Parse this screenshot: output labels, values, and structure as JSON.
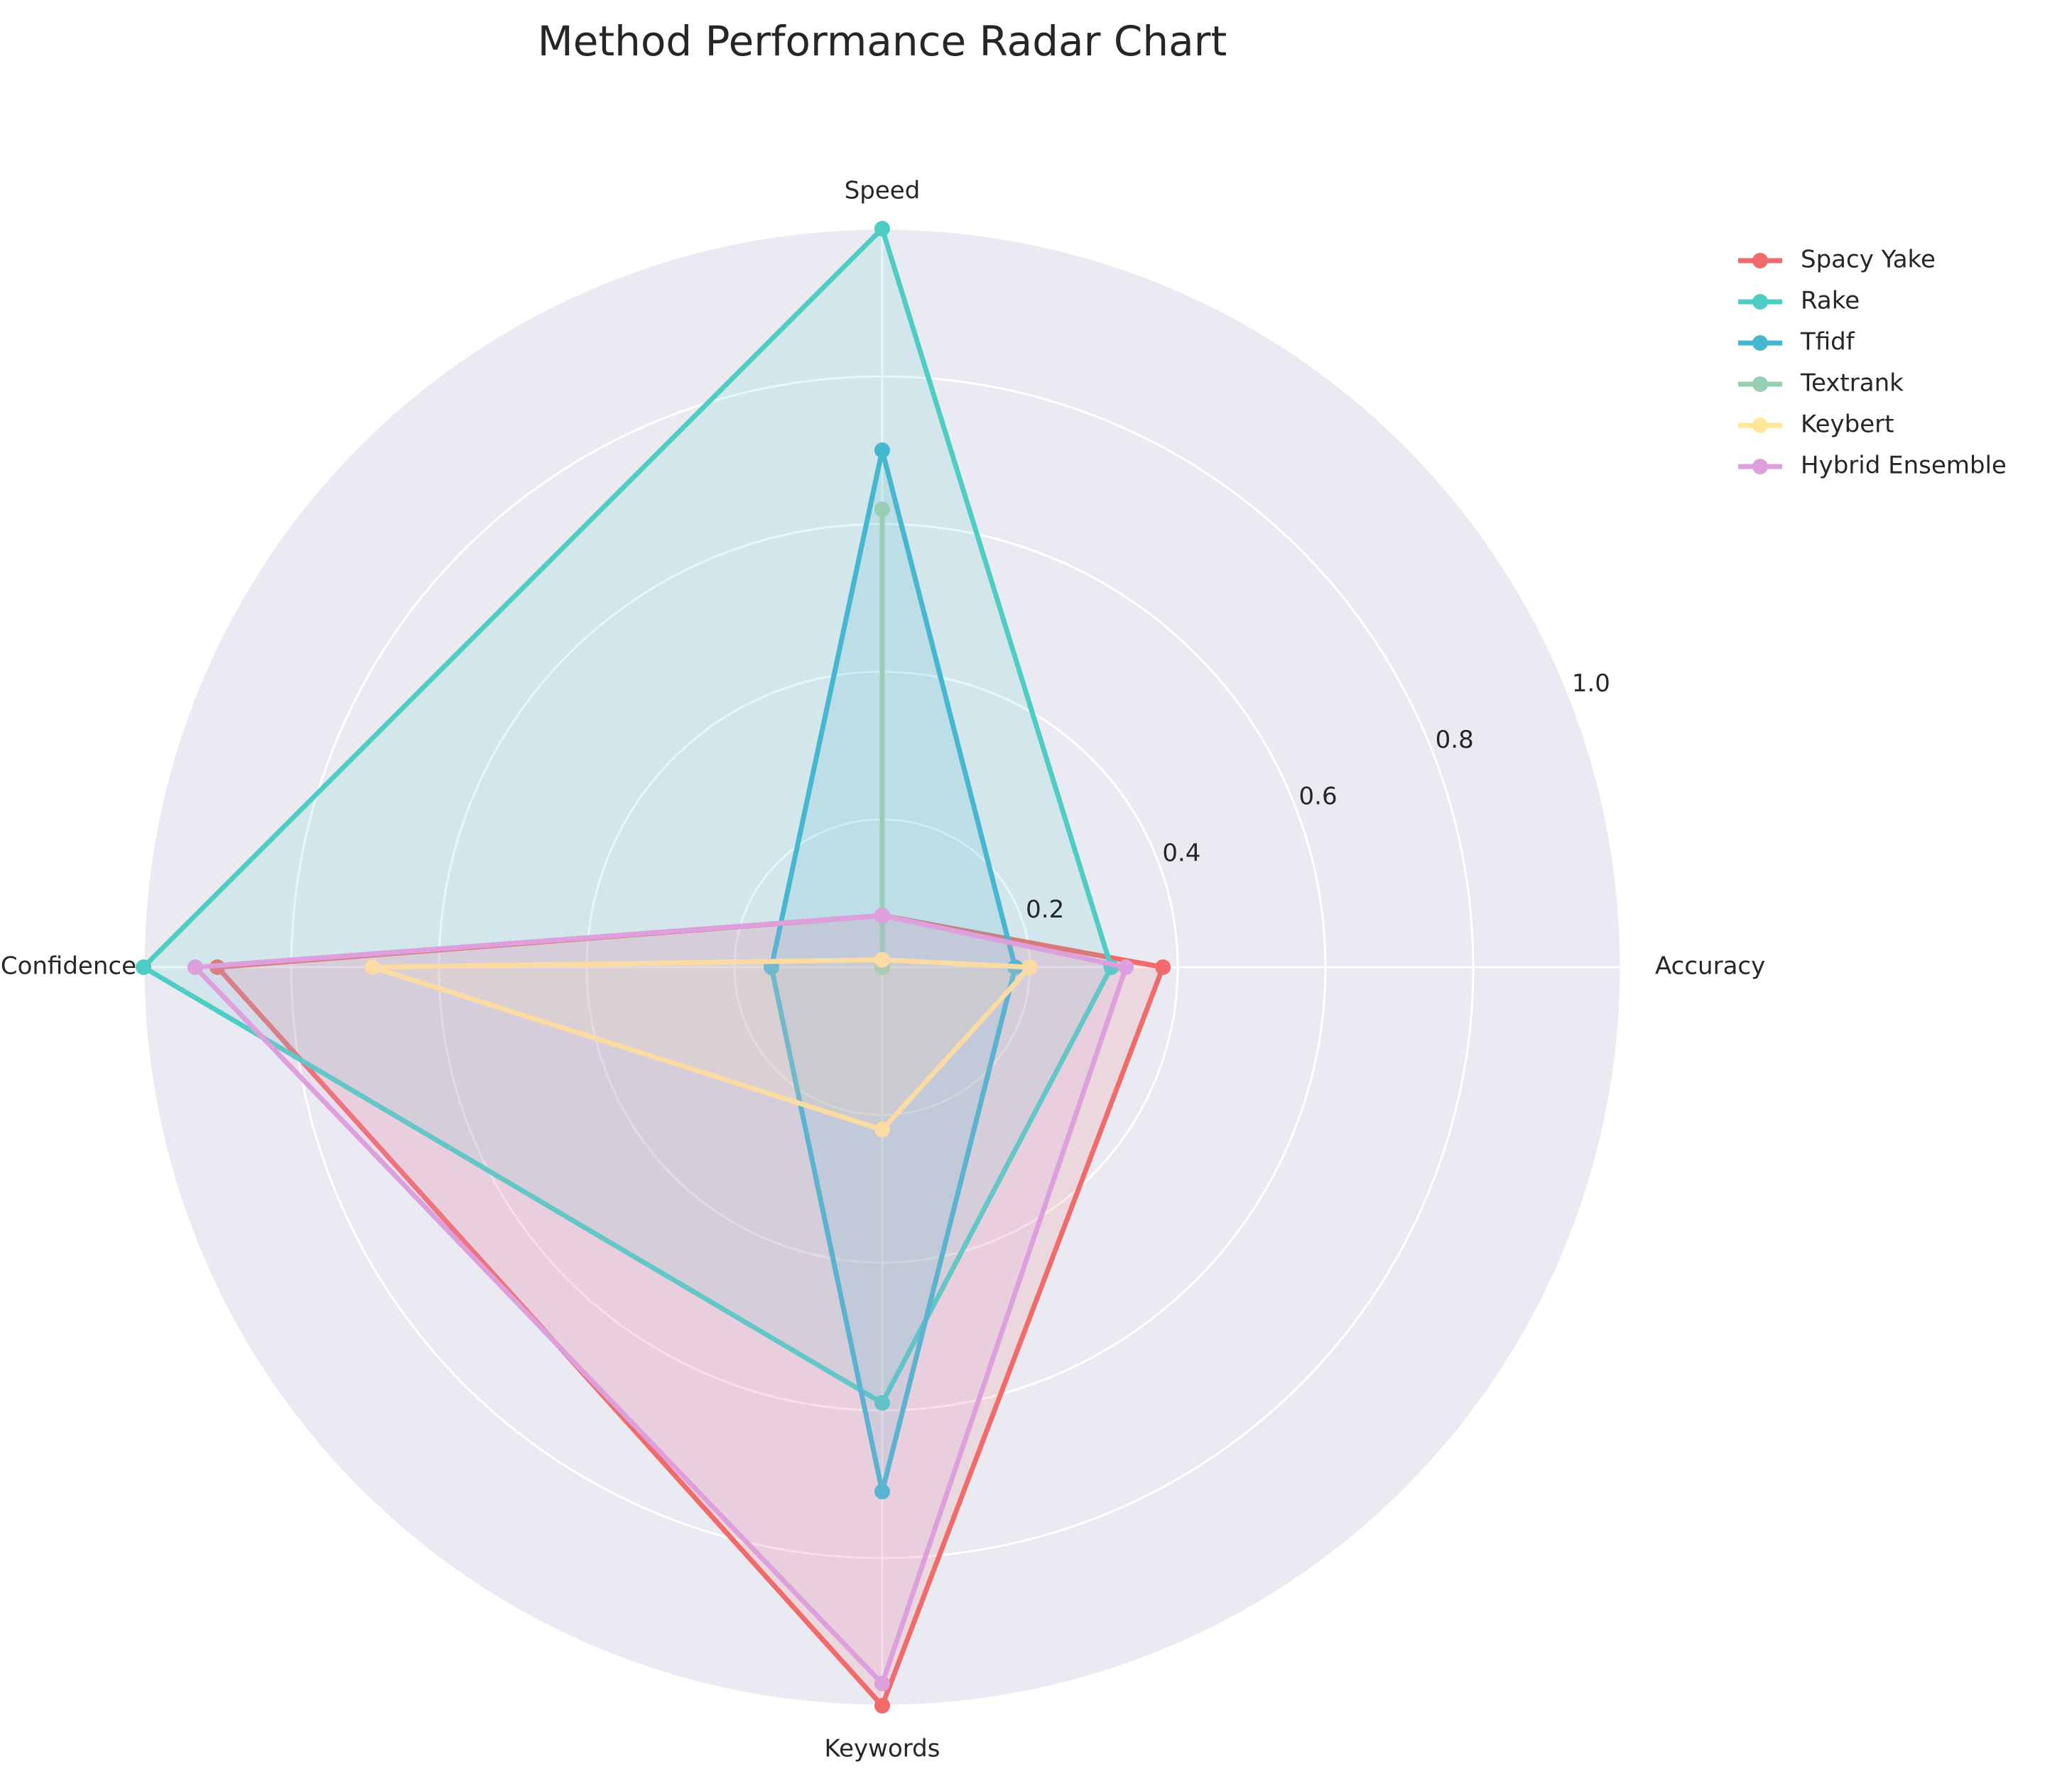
{
  "chart_data": {
    "type": "radar",
    "title": "Method Performance Radar Chart",
    "axes": [
      "Accuracy",
      "Speed",
      "Confidence",
      "Keywords"
    ],
    "rlim": [
      0,
      1.0
    ],
    "rticks": [
      0.2,
      0.4,
      0.6,
      0.8,
      1.0
    ],
    "rtick_labels": [
      "0.2",
      "0.4",
      "0.6",
      "0.8",
      "1.0"
    ],
    "grid": true,
    "legend_position": "upper-right",
    "series": [
      {
        "name": "Spacy Yake",
        "color": "#f26b6b",
        "values": [
          0.38,
          0.07,
          0.9,
          1.0
        ]
      },
      {
        "name": "Rake",
        "color": "#4ecdc4",
        "values": [
          0.31,
          1.0,
          1.0,
          0.59
        ]
      },
      {
        "name": "Tfidf",
        "color": "#45b7d1",
        "values": [
          0.18,
          0.7,
          0.15,
          0.71
        ]
      },
      {
        "name": "Textrank",
        "color": "#96cfb4",
        "values": [
          0.0,
          0.62,
          0.0,
          0.0
        ]
      },
      {
        "name": "Keybert",
        "color": "#ffe699",
        "values": [
          0.2,
          0.01,
          0.69,
          0.22
        ]
      },
      {
        "name": "Hybrid Ensemble",
        "color": "#dda0dd",
        "values": [
          0.33,
          0.07,
          0.93,
          0.97
        ]
      }
    ]
  }
}
